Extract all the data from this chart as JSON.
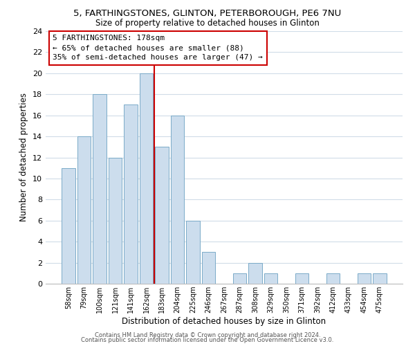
{
  "title1": "5, FARTHINGSTONES, GLINTON, PETERBOROUGH, PE6 7NU",
  "title2": "Size of property relative to detached houses in Glinton",
  "xlabel": "Distribution of detached houses by size in Glinton",
  "ylabel": "Number of detached properties",
  "bar_labels": [
    "58sqm",
    "79sqm",
    "100sqm",
    "121sqm",
    "141sqm",
    "162sqm",
    "183sqm",
    "204sqm",
    "225sqm",
    "246sqm",
    "267sqm",
    "287sqm",
    "308sqm",
    "329sqm",
    "350sqm",
    "371sqm",
    "392sqm",
    "412sqm",
    "433sqm",
    "454sqm",
    "475sqm"
  ],
  "bar_heights": [
    11,
    14,
    18,
    12,
    17,
    20,
    13,
    16,
    6,
    3,
    0,
    1,
    2,
    1,
    0,
    1,
    0,
    1,
    0,
    1,
    1
  ],
  "bar_color": "#ccdded",
  "bar_edge_color": "#7aaac8",
  "vline_color": "#cc0000",
  "vline_x_index": 6,
  "ylim": [
    0,
    24
  ],
  "yticks": [
    0,
    2,
    4,
    6,
    8,
    10,
    12,
    14,
    16,
    18,
    20,
    22,
    24
  ],
  "annotation_title": "5 FARTHINGSTONES: 178sqm",
  "annotation_line1": "← 65% of detached houses are smaller (88)",
  "annotation_line2": "35% of semi-detached houses are larger (47) →",
  "annotation_box_color": "#ffffff",
  "annotation_box_edge": "#cc0000",
  "footer1": "Contains HM Land Registry data © Crown copyright and database right 2024.",
  "footer2": "Contains public sector information licensed under the Open Government Licence v3.0.",
  "bg_color": "#ffffff",
  "grid_color": "#d0dce8"
}
